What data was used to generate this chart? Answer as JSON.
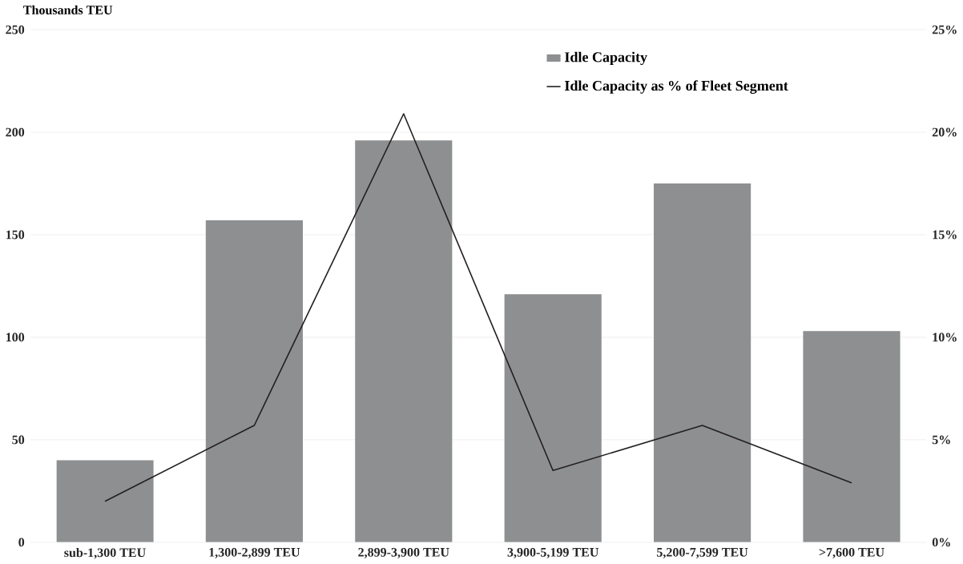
{
  "chart_data": {
    "type": "bar",
    "ylabel": "Thousands TEU",
    "categories": [
      "sub-1,300 TEU",
      "1,300-2,899 TEU",
      "2,899-3,900 TEU",
      "3,900-5,199 TEU",
      "5,200-7,599 TEU",
      ">7,600 TEU"
    ],
    "series": [
      {
        "name": "Idle Capacity",
        "color": "#8e8f91",
        "values": [
          40,
          157,
          196,
          121,
          175,
          103
        ]
      },
      {
        "name": "Idle Capacity as % of Fleet Segment",
        "type": "line",
        "axis": "y2",
        "color": "#231f20",
        "values": [
          2.0,
          5.7,
          20.9,
          3.5,
          5.7,
          2.9
        ]
      }
    ],
    "ylim": [
      0,
      250
    ],
    "yticks": [
      0,
      50,
      100,
      150,
      200,
      250
    ],
    "y2lim": [
      0,
      25
    ],
    "y2ticks": [
      {
        "value": 0,
        "label": "0%"
      },
      {
        "value": 5,
        "label": "5%"
      },
      {
        "value": 10,
        "label": "10%"
      },
      {
        "value": 15,
        "label": "15%"
      },
      {
        "value": 20,
        "label": "20%"
      },
      {
        "value": 25,
        "label": "25%"
      }
    ],
    "grid": "y",
    "legend": "top right",
    "marker": "none",
    "line_style": "solid"
  }
}
